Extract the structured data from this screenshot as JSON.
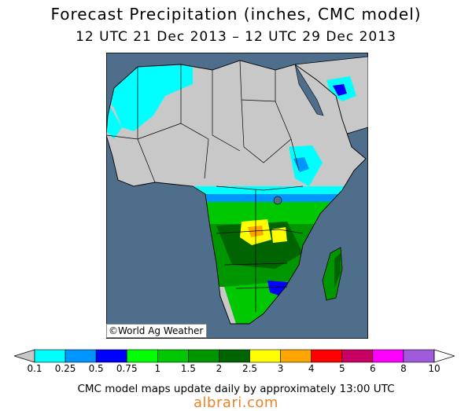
{
  "header": {
    "title": "Forecast Precipitation (inches, CMC model)",
    "subtitle": "12 UTC 21 Dec 2013 – 12 UTC 29 Dec 2013"
  },
  "map": {
    "region": "Africa",
    "credit": "©World Ag Weather",
    "colors": {
      "ocean": "#4f6e8c",
      "land": "#c8c8c8",
      "border": "#000000"
    }
  },
  "legend": {
    "colors": [
      "#00ffff",
      "#0096ff",
      "#0000ff",
      "#00ff00",
      "#00c800",
      "#009600",
      "#006400",
      "#ffff00",
      "#ffa500",
      "#ff0000",
      "#c80064",
      "#ff00ff",
      "#a05adc"
    ],
    "ticks": [
      "0.1",
      "0.25",
      "0.5",
      "0.75",
      "1",
      "1.5",
      "2",
      "2.5",
      "3",
      "4",
      "5",
      "6",
      "8",
      "10"
    ]
  },
  "footer": {
    "note": "CMC model maps update daily by approximately 13:00 UTC",
    "brand": "albrari.com"
  }
}
